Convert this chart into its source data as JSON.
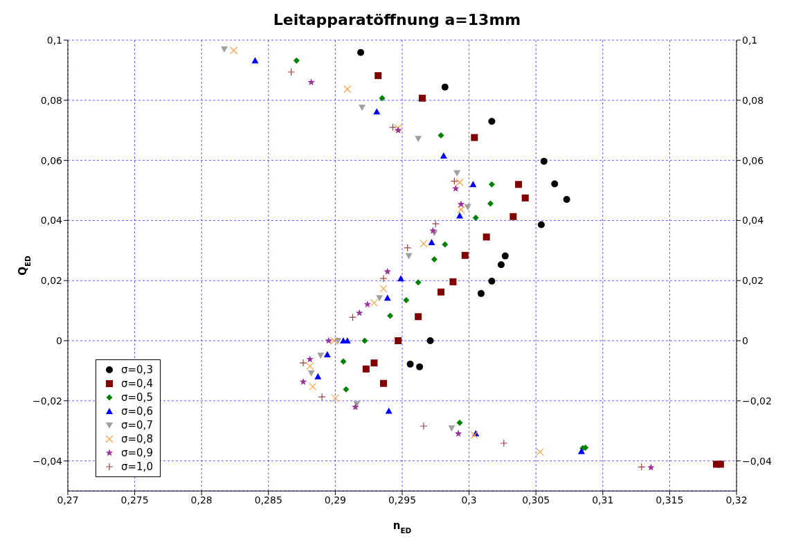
{
  "chart_data": {
    "type": "scatter",
    "title": "Leitapparatöffnung a=13mm",
    "xlabel": "n$_{ED}$",
    "ylabel": "Q$_{ED}$",
    "xlim": [
      0.27,
      0.32
    ],
    "xticks": [
      {
        "value": 0.27,
        "label": "0,27"
      },
      {
        "value": 0.275,
        "label": "0,275"
      },
      {
        "value": 0.28,
        "label": "0,28"
      },
      {
        "value": 0.285,
        "label": "0,285"
      },
      {
        "value": 0.29,
        "label": "0,29"
      },
      {
        "value": 0.295,
        "label": "0,295"
      },
      {
        "value": 0.3,
        "label": "0,3"
      },
      {
        "value": 0.305,
        "label": "0,305"
      },
      {
        "value": 0.31,
        "label": "0,31"
      },
      {
        "value": 0.315,
        "label": "0,315"
      },
      {
        "value": 0.32,
        "label": "0,32"
      }
    ],
    "ylim": [
      -0.05,
      0.1
    ],
    "yticks": [
      {
        "value": -0.04,
        "label": "−0,04"
      },
      {
        "value": -0.02,
        "label": "−0,02"
      },
      0,
      {
        "value": 0.02,
        "label": "0,02"
      },
      {
        "value": 0.04,
        "label": "0,04"
      },
      {
        "value": 0.06,
        "label": "0,06"
      },
      {
        "value": 0.08,
        "label": "0,08"
      },
      {
        "value": 0.1,
        "label": "0,1"
      }
    ],
    "y2lim": [
      -0.05,
      0.1
    ],
    "y2ticks": [
      {
        "value": -0.04,
        "label": "−0,04"
      },
      {
        "value": -0.02,
        "label": "−0,02"
      },
      0,
      {
        "value": 0.02,
        "label": "0,02"
      },
      {
        "value": 0.04,
        "label": "0,04"
      },
      {
        "value": 0.06,
        "label": "0,06"
      },
      {
        "value": 0.08,
        "label": "0,08"
      },
      {
        "value": 0.1,
        "label": "0,1"
      }
    ],
    "grid": true,
    "legend": "bottom left",
    "series": [
      {
        "name": "σ=0,3",
        "color": "#000000",
        "marker": "circle",
        "x": [
          0.2919,
          0.2982,
          0.3017,
          0.3056,
          0.3064,
          0.3073,
          0.3054,
          0.3027,
          0.3024,
          0.3017,
          0.3009,
          0.2971,
          0.2956,
          0.2963
        ],
        "values": [
          0.0959,
          0.0844,
          0.073,
          0.0597,
          0.0522,
          0.047,
          0.0386,
          0.0282,
          0.0253,
          0.0198,
          0.0157,
          0,
          -0.0078,
          -0.0087
        ]
      },
      {
        "name": "σ=0,4",
        "color": "#800000",
        "marker": "square",
        "x": [
          0.2932,
          0.2965,
          0.3004,
          0.3037,
          0.3042,
          0.3033,
          0.3013,
          0.2997,
          0.2988,
          0.2979,
          0.2962,
          0.2947,
          0.2929,
          0.2923,
          0.2936,
          0.3185,
          0.3188
        ],
        "values": [
          0.0882,
          0.0807,
          0.0676,
          0.052,
          0.0475,
          0.0413,
          0.0345,
          0.0284,
          0.0196,
          0.0162,
          0.008,
          0,
          -0.0074,
          -0.0094,
          -0.0142,
          -0.0411,
          -0.0411
        ]
      },
      {
        "name": "σ=0,5",
        "color": "#008000",
        "marker": "diamond",
        "x": [
          0.2871,
          0.2935,
          0.2979,
          0.3017,
          0.3016,
          0.3005,
          0.2982,
          0.2974,
          0.2962,
          0.2953,
          0.2941,
          0.2922,
          0.2906,
          0.2908,
          0.2993,
          0.3085,
          0.3087
        ],
        "values": [
          0.0932,
          0.0807,
          0.0683,
          0.052,
          0.0456,
          0.0409,
          0.032,
          0.0271,
          0.0194,
          0.0135,
          0.0083,
          0,
          -0.0069,
          -0.0162,
          -0.0273,
          -0.0358,
          -0.0356
        ]
      },
      {
        "name": "σ=0,6",
        "color": "#0000ff",
        "marker": "triangle",
        "x": [
          0.284,
          0.2931,
          0.2981,
          0.3003,
          0.2993,
          0.2972,
          0.2949,
          0.2939,
          0.2906,
          0.2909,
          0.2894,
          0.2887,
          0.294,
          0.3005,
          0.3084
        ],
        "values": [
          0.0932,
          0.0762,
          0.0615,
          0.052,
          0.0416,
          0.0327,
          0.0207,
          0.0142,
          0,
          0,
          -0.0046,
          -0.0119,
          -0.0234,
          -0.0309,
          -0.0368
        ]
      },
      {
        "name": "σ=0,7",
        "color": "#a0a0a0",
        "marker": "triangle-down",
        "x": [
          0.2817,
          0.292,
          0.2962,
          0.2991,
          0.2999,
          0.2974,
          0.2955,
          0.2933,
          0.2902,
          0.2889,
          0.2882,
          0.2916,
          0.2987
        ],
        "values": [
          0.097,
          0.0776,
          0.0672,
          0.0558,
          0.0445,
          0.0359,
          0.0282,
          0.0142,
          0,
          -0.0049,
          -0.0108,
          -0.021,
          -0.0291
        ]
      },
      {
        "name": "σ=0,8",
        "color": "#ffa040",
        "marker": "cross",
        "x": [
          0.2824,
          0.2909,
          0.2947,
          0.2993,
          0.2994,
          0.2966,
          0.2936,
          0.2929,
          0.2899,
          0.2881,
          0.2883,
          0.29,
          0.3004,
          0.3053
        ],
        "values": [
          0.0966,
          0.0837,
          0.0708,
          0.0527,
          0.0436,
          0.0323,
          0.0173,
          0.0126,
          0,
          -0.0085,
          -0.0153,
          -0.0191,
          -0.0314,
          -0.037
        ]
      },
      {
        "name": "σ=0,9",
        "color": "#993399",
        "marker": "star",
        "x": [
          0.2882,
          0.2947,
          0.299,
          0.2994,
          0.2973,
          0.2939,
          0.2924,
          0.2918,
          0.2895,
          0.2881,
          0.2876,
          0.2915,
          0.2992,
          0.3136
        ],
        "values": [
          0.086,
          0.07,
          0.0506,
          0.0454,
          0.0366,
          0.023,
          0.0121,
          0.0092,
          0,
          -0.0062,
          -0.0137,
          -0.0221,
          -0.0309,
          -0.0422
        ]
      },
      {
        "name": "σ=1,0",
        "color": "#a04040",
        "marker": "plus",
        "x": [
          0.2867,
          0.2943,
          0.2989,
          0.2975,
          0.2954,
          0.2936,
          0.2913,
          0.2876,
          0.289,
          0.2966,
          0.3026,
          0.3129
        ],
        "values": [
          0.0894,
          0.071,
          0.0531,
          0.0389,
          0.0309,
          0.0207,
          0.0078,
          -0.0074,
          -0.0187,
          -0.0284,
          -0.0341,
          -0.042
        ]
      }
    ]
  }
}
